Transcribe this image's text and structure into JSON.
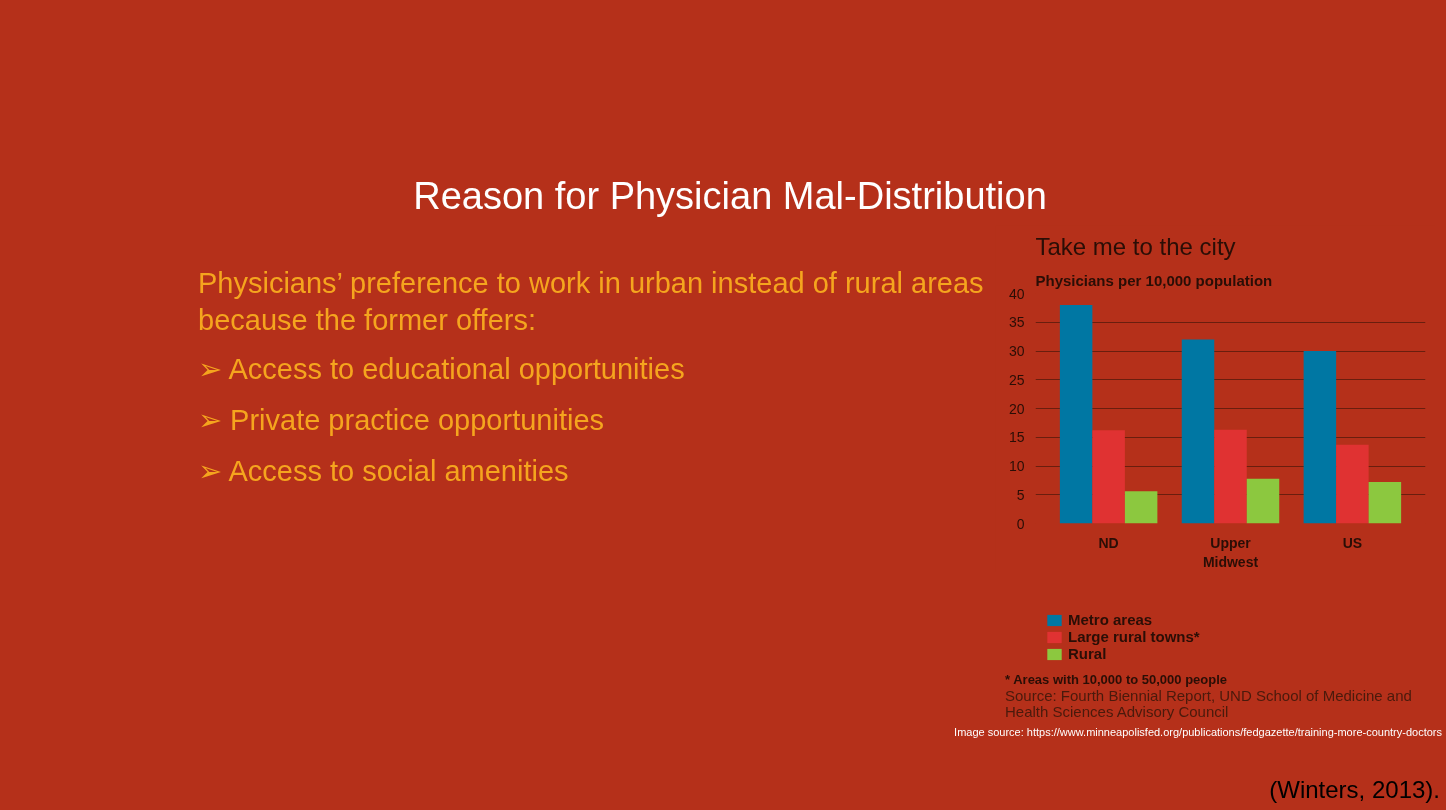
{
  "chart_data": {
    "type": "bar",
    "title": "Take me to the city",
    "subtitle": "Physicians per 10,000 population",
    "categories": [
      "ND",
      "Upper Midwest",
      "US"
    ],
    "series": [
      {
        "name": "Metro areas",
        "color": "#0077a3",
        "values": [
          38,
          32,
          30
        ]
      },
      {
        "name": "Large rural towns*",
        "color": "#e03232",
        "values": [
          16.2,
          16.3,
          13.7
        ]
      },
      {
        "name": "Rural",
        "color": "#8cc83f",
        "values": [
          5.6,
          7.8,
          7.2
        ]
      }
    ],
    "ylim": [
      0,
      40
    ],
    "yticks": [
      0,
      5,
      10,
      15,
      20,
      25,
      30,
      35,
      40
    ],
    "grid": "y",
    "legend": "bottom",
    "annotations": [
      "Reason for Physician Mal-Distribution",
      "Physicians’ preference to work in urban instead of rural areas because the former offers:",
      "➢ Access to educational opportunities",
      "➢ Private practice opportunities",
      "➢ Access to social amenities",
      "* Areas with 10,000 to 50,000 people",
      "Source: Fourth Biennial Report, UND School of Medicine and Health Sciences Advisory Council",
      "Image source: https://www.minneapolisfed.org/publications/fedgazette/training-more-country-doctors",
      "(Winters, 2013)."
    ]
  }
}
